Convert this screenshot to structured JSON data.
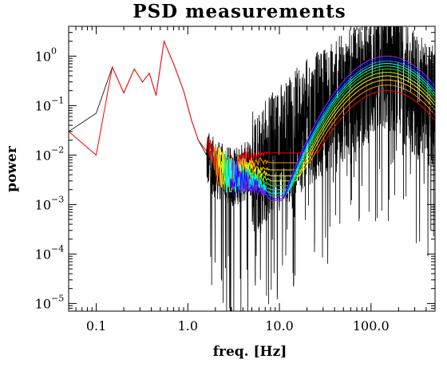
{
  "chart_data": {
    "type": "line",
    "title": "PSD measurements",
    "xlabel": "freq. [Hz]",
    "ylabel": "power",
    "xscale": "log",
    "yscale": "log",
    "xlim": [
      0.05,
      500
    ],
    "ylim": [
      7e-06,
      4
    ],
    "x_ticks": [
      {
        "value": 0.1,
        "label": "0.1"
      },
      {
        "value": 1,
        "label": "1.0"
      },
      {
        "value": 10,
        "label": "10.0"
      },
      {
        "value": 100,
        "label": "100.0"
      }
    ],
    "y_ticks": [
      {
        "value": 1,
        "base": "10",
        "exp": "0"
      },
      {
        "value": 0.1,
        "base": "10",
        "exp": "−1"
      },
      {
        "value": 0.01,
        "base": "10",
        "exp": "−2"
      },
      {
        "value": 0.001,
        "base": "10",
        "exp": "−3"
      },
      {
        "value": 0.0001,
        "base": "10",
        "exp": "−4"
      },
      {
        "value": 1e-05,
        "base": "10",
        "exp": "−5"
      }
    ],
    "grid": false,
    "legend": "none",
    "measured": {
      "color": "#000000",
      "points": [
        [
          0.05,
          0.03
        ],
        [
          0.1,
          0.07
        ],
        [
          0.15,
          0.6
        ],
        [
          0.2,
          0.18
        ],
        [
          0.26,
          0.55
        ],
        [
          0.32,
          0.3
        ],
        [
          0.38,
          0.45
        ],
        [
          0.45,
          0.16
        ],
        [
          0.55,
          2.0
        ],
        [
          0.7,
          0.7
        ],
        [
          0.9,
          0.2
        ],
        [
          1.1,
          0.05
        ],
        [
          1.3,
          0.02
        ],
        [
          1.6,
          0.01
        ],
        [
          2.0,
          0.006
        ],
        [
          3.0,
          0.004
        ],
        [
          5.0,
          0.006
        ],
        [
          10.0,
          0.02
        ],
        [
          20.0,
          0.06
        ],
        [
          50.0,
          0.2
        ],
        [
          100.0,
          0.5
        ],
        [
          150.0,
          0.8
        ],
        [
          200.0,
          0.6
        ],
        [
          300.0,
          0.25
        ],
        [
          500.0,
          0.1
        ]
      ]
    },
    "fits": {
      "low_freq_curve": {
        "color": "#ff0000",
        "points": [
          [
            0.05,
            0.03
          ],
          [
            0.1,
            0.01
          ],
          [
            0.15,
            0.6
          ],
          [
            0.2,
            0.18
          ],
          [
            0.26,
            0.55
          ],
          [
            0.32,
            0.3
          ],
          [
            0.38,
            0.45
          ],
          [
            0.45,
            0.16
          ],
          [
            0.55,
            2.0
          ],
          [
            0.7,
            0.7
          ],
          [
            0.9,
            0.2
          ],
          [
            1.1,
            0.05
          ],
          [
            1.3,
            0.02
          ],
          [
            1.6,
            0.012
          ]
        ]
      },
      "series": [
        {
          "color": "#ff0000",
          "floor": 0.011,
          "peak": 0.2,
          "f_peak": 150
        },
        {
          "color": "#ff8c00",
          "floor": 0.007,
          "peak": 0.26,
          "f_peak": 150
        },
        {
          "color": "#ffd700",
          "floor": 0.005,
          "peak": 0.33,
          "f_peak": 150
        },
        {
          "color": "#ffff00",
          "floor": 0.0038,
          "peak": 0.4,
          "f_peak": 150
        },
        {
          "color": "#adff2f",
          "floor": 0.003,
          "peak": 0.47,
          "f_peak": 150
        },
        {
          "color": "#32cd32",
          "floor": 0.0024,
          "peak": 0.55,
          "f_peak": 150
        },
        {
          "color": "#00fa9a",
          "floor": 0.002,
          "peak": 0.63,
          "f_peak": 150
        },
        {
          "color": "#00ffff",
          "floor": 0.0017,
          "peak": 0.71,
          "f_peak": 150
        },
        {
          "color": "#1e90ff",
          "floor": 0.0015,
          "peak": 0.8,
          "f_peak": 150
        },
        {
          "color": "#0000ff",
          "floor": 0.0013,
          "peak": 0.9,
          "f_peak": 150
        },
        {
          "color": "#8a2be2",
          "floor": 0.0012,
          "peak": 1.0,
          "f_peak": 150
        }
      ]
    }
  }
}
